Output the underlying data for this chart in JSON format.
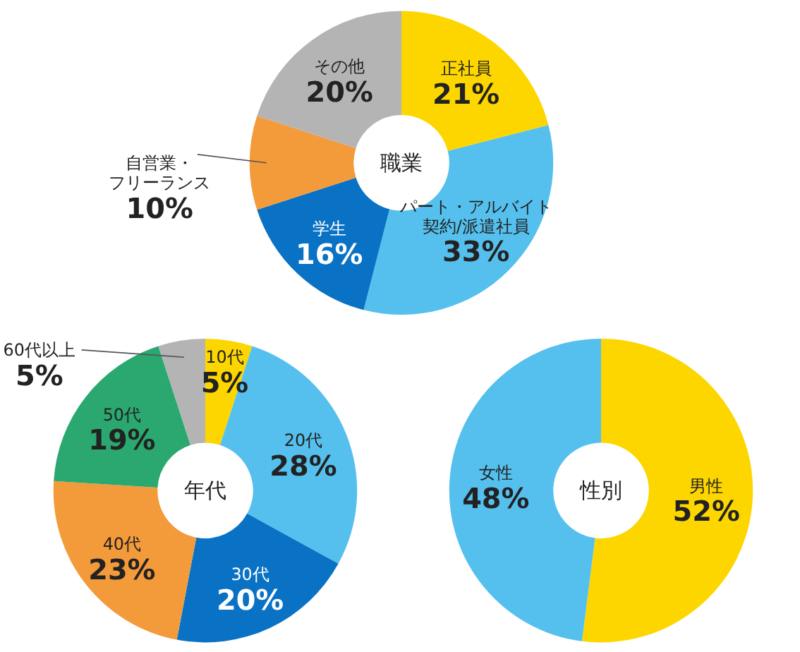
{
  "chart_data": [
    {
      "type": "donut",
      "title": "職業",
      "categories": [
        "正社員",
        "パート・アルバイト契約/派遣社員",
        "学生",
        "自営業・フリーランス",
        "その他"
      ],
      "values": [
        21,
        33,
        16,
        10,
        20
      ],
      "colors": [
        "#fdd600",
        "#55c0ee",
        "#0a72c4",
        "#f39a3a",
        "#b4b4b4"
      ],
      "value_labels": [
        "21%",
        "33%",
        "16%",
        "10%",
        "20%"
      ],
      "legend": false
    },
    {
      "type": "donut",
      "title": "年代",
      "categories": [
        "10代",
        "20代",
        "30代",
        "40代",
        "50代",
        "60代以上"
      ],
      "values": [
        5,
        28,
        20,
        23,
        19,
        5
      ],
      "colors": [
        "#fdd600",
        "#55c0ee",
        "#0a72c4",
        "#f39a3a",
        "#2aa870",
        "#b4b4b4"
      ],
      "value_labels": [
        "5%",
        "28%",
        "20%",
        "23%",
        "19%",
        "5%"
      ],
      "legend": false
    },
    {
      "type": "donut",
      "title": "性別",
      "categories": [
        "男性",
        "女性"
      ],
      "values": [
        52,
        48
      ],
      "colors": [
        "#fdd600",
        "#55c0ee"
      ],
      "value_labels": [
        "52%",
        "48%"
      ],
      "legend": false
    }
  ]
}
